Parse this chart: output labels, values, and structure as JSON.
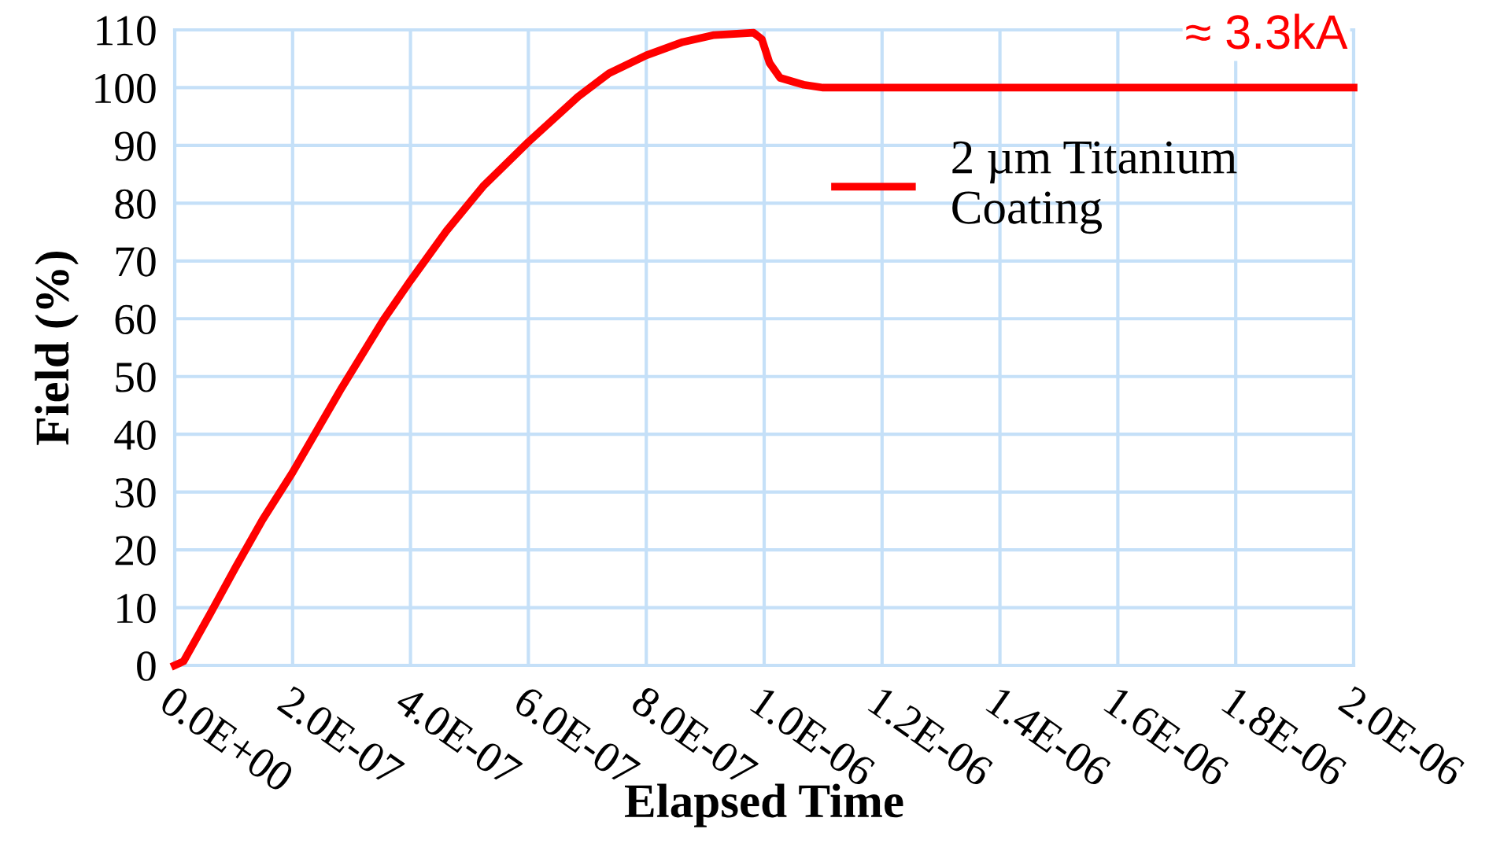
{
  "chart_data": {
    "type": "line",
    "xlabel": "Elapsed Time",
    "ylabel": "Field (%)",
    "x": [
      0,
      1.5e-08,
      6e-08,
      1.04e-07,
      1.49e-07,
      2e-07,
      2.83e-07,
      3.54e-07,
      4e-07,
      4.61e-07,
      5.23e-07,
      6e-07,
      6.84e-07,
      7.37e-07,
      8e-07,
      8.62e-07,
      9.15e-07,
      9.82e-07,
      9.96e-07,
      1.009e-06,
      1.027e-06,
      1.067e-06,
      1.1e-06,
      1.5e-06,
      2e-06
    ],
    "series": [
      {
        "name": "2 µm Titanium\nCoating",
        "color": "#ff0000",
        "values": [
          0,
          0.7,
          8.9,
          17.1,
          25.2,
          33.4,
          48,
          59.8,
          66.6,
          75.2,
          82.9,
          90.6,
          98.4,
          102.5,
          105.6,
          107.9,
          109.1,
          109.5,
          108.4,
          104.3,
          101.7,
          100.5,
          100,
          100,
          100
        ]
      }
    ],
    "xlim": [
      0,
      2e-06
    ],
    "ylim": [
      0,
      110
    ],
    "xticks": [
      {
        "value": 0,
        "label": "0.0E+00"
      },
      {
        "value": 2e-07,
        "label": "2.0E-07"
      },
      {
        "value": 4e-07,
        "label": "4.0E-07"
      },
      {
        "value": 6e-07,
        "label": "6.0E-07"
      },
      {
        "value": 8e-07,
        "label": "8.0E-07"
      },
      {
        "value": 1e-06,
        "label": "1.0E-06"
      },
      {
        "value": 1.2e-06,
        "label": "1.2E-06"
      },
      {
        "value": 1.4e-06,
        "label": "1.4E-06"
      },
      {
        "value": 1.6e-06,
        "label": "1.6E-06"
      },
      {
        "value": 1.8e-06,
        "label": "1.8E-06"
      },
      {
        "value": 2e-06,
        "label": "2.0E-06"
      }
    ],
    "yticks": [
      0,
      10,
      20,
      30,
      40,
      50,
      60,
      70,
      80,
      90,
      100,
      110
    ],
    "annotations": [
      "≈ 3.3kA"
    ],
    "grid": true,
    "legend": "top right",
    "marker": "none",
    "line_style": "solid"
  }
}
